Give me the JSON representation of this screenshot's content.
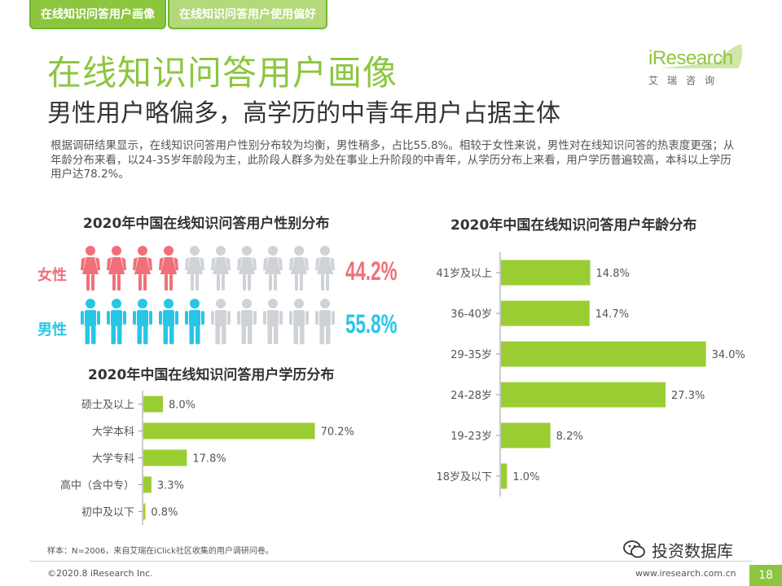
{
  "tabs": [
    {
      "label": "在线知识问答用户画像"
    },
    {
      "label": "在线知识问答用户使用偏好"
    }
  ],
  "title": "在线知识问答用户画像",
  "subtitle": "男性用户略偏多，高学历的中青年用户占据主体",
  "summary": "根据调研结果显示，在线知识问答用户性别分布较为均衡，男性稍多，占比55.8%。相较于女性来说，男性对在线知识问答的热衷度更强；从年龄分布来看，以24-35岁年龄段为主，此阶段人群多为处在事业上升阶段的中青年，从学历分布上来看，用户学历普遍较高，本科以上学历用户达78.2%。",
  "logo": {
    "word": "iResearch",
    "sub": "艾瑞咨询"
  },
  "colors": {
    "accent": "#8cc63f",
    "bar": "#9acd32",
    "female": "#f0707a",
    "male": "#29c5e6",
    "inactive": "#cfd3d8"
  },
  "icons": {
    "person": "person-icon",
    "watermark": "wechat-icon"
  },
  "chart_data": [
    {
      "type": "pictogram",
      "title": "2020年中国在线知识问答用户性别分布",
      "series": [
        {
          "name": "女性",
          "value": 44.2,
          "value_label": "44.2%",
          "filled_icons": 4,
          "total_icons": 10
        },
        {
          "name": "男性",
          "value": 55.8,
          "value_label": "55.8%",
          "filled_icons": 5,
          "total_icons": 10
        }
      ]
    },
    {
      "type": "bar",
      "orientation": "horizontal",
      "title": "2020年中国在线知识问答用户学历分布",
      "categories": [
        "硕士及以上",
        "大学本科",
        "大学专科",
        "高中（含中专）",
        "初中及以下"
      ],
      "values": [
        8.0,
        70.2,
        17.8,
        3.3,
        0.8
      ],
      "value_labels": [
        "8.0%",
        "70.2%",
        "17.8%",
        "3.3%",
        "0.8%"
      ],
      "xlim": [
        0,
        100
      ],
      "unit": "%"
    },
    {
      "type": "bar",
      "orientation": "horizontal",
      "title": "2020年中国在线知识问答用户年龄分布",
      "categories": [
        "41岁及以上",
        "36-40岁",
        "29-35岁",
        "24-28岁",
        "19-23岁",
        "18岁及以下"
      ],
      "values": [
        14.8,
        14.7,
        34.0,
        27.3,
        8.2,
        1.0
      ],
      "value_labels": [
        "14.8%",
        "14.7%",
        "34.0%",
        "27.3%",
        "8.2%",
        "1.0%"
      ],
      "xlim": [
        0,
        40
      ],
      "unit": "%"
    }
  ],
  "footer": {
    "note": "样本：N=2006，来自艾瑞在iClick社区收集的用户调研问卷。",
    "copyright": "©2020.8 iResearch Inc.",
    "website": "www.iresearch.com.cn",
    "page": "18",
    "watermark": "投资数据库"
  }
}
